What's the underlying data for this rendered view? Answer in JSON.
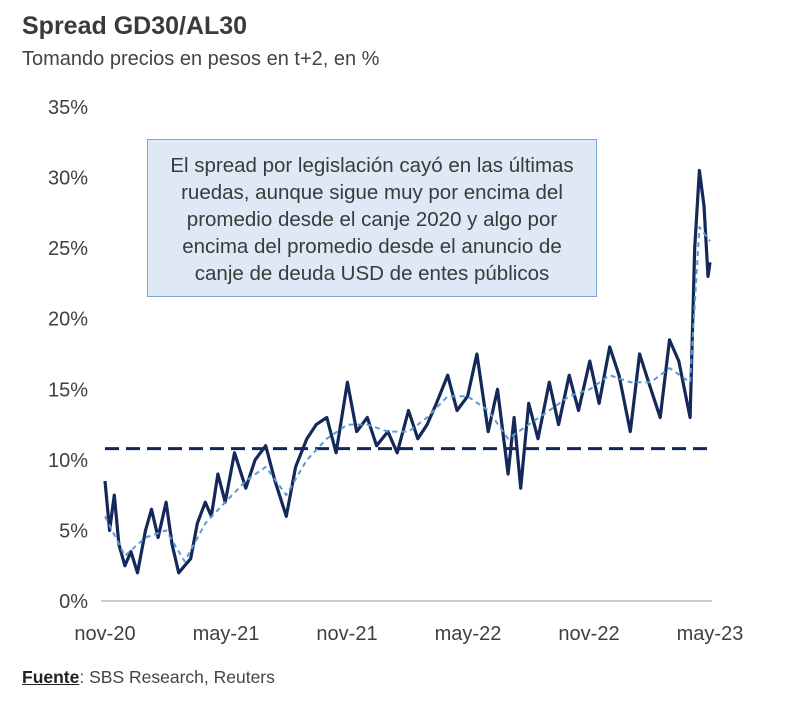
{
  "header": {
    "title": "Spread GD30/AL30",
    "subtitle": "Tomando precios en pesos en t+2, en %"
  },
  "annotation": "El spread por legislación cayó en las últimas ruedas, aunque sigue muy por encima del promedio desde el canje 2020 y algo por encima del promedio desde el anuncio de canje de deuda USD de entes públicos",
  "footer": {
    "source_label": "Fuente",
    "source_text": ": SBS Research, Reuters"
  },
  "colors": {
    "series_dark": "#14285a",
    "series_ma": "#5b9bd5",
    "reference_line": "#14285a",
    "annotation_bg": "#dfe9f5",
    "annotation_border": "#7fa7d4"
  },
  "chart_data": {
    "type": "line",
    "title": "Spread GD30/AL30",
    "subtitle": "Tomando precios en pesos en t+2, en %",
    "xlabel": "",
    "ylabel": "",
    "x_tick_labels": [
      "nov-20",
      "may-21",
      "nov-21",
      "may-22",
      "nov-22",
      "may-23"
    ],
    "y_tick_labels": [
      "0%",
      "5%",
      "10%",
      "15%",
      "20%",
      "25%",
      "30%",
      "35%"
    ],
    "ylim": [
      0,
      35
    ],
    "x_range": [
      "2020-11-01",
      "2023-05-01"
    ],
    "grid": false,
    "legend": "none",
    "reference_lines": [
      {
        "value": 10.8,
        "style": "dashed"
      }
    ],
    "series": [
      {
        "style": "solid",
        "x": [
          "2020-11-01",
          "2020-11-08",
          "2020-11-15",
          "2020-11-22",
          "2020-12-01",
          "2020-12-10",
          "2020-12-20",
          "2021-01-01",
          "2021-01-10",
          "2021-01-20",
          "2021-02-01",
          "2021-02-10",
          "2021-02-20",
          "2021-03-01",
          "2021-03-10",
          "2021-03-20",
          "2021-04-01",
          "2021-04-10",
          "2021-04-20",
          "2021-05-01",
          "2021-05-15",
          "2021-06-01",
          "2021-06-15",
          "2021-07-01",
          "2021-07-15",
          "2021-08-01",
          "2021-08-15",
          "2021-09-01",
          "2021-09-15",
          "2021-10-01",
          "2021-10-15",
          "2021-11-01",
          "2021-11-15",
          "2021-12-01",
          "2021-12-15",
          "2022-01-01",
          "2022-01-15",
          "2022-02-01",
          "2022-02-15",
          "2022-03-01",
          "2022-03-15",
          "2022-04-01",
          "2022-04-15",
          "2022-05-01",
          "2022-05-15",
          "2022-06-01",
          "2022-06-15",
          "2022-07-01",
          "2022-07-10",
          "2022-07-20",
          "2022-08-01",
          "2022-08-15",
          "2022-09-01",
          "2022-09-15",
          "2022-10-01",
          "2022-10-15",
          "2022-11-01",
          "2022-11-15",
          "2022-12-01",
          "2022-12-15",
          "2023-01-01",
          "2023-01-15",
          "2023-02-01",
          "2023-02-15",
          "2023-03-01",
          "2023-03-15",
          "2023-04-01",
          "2023-04-08",
          "2023-04-15",
          "2023-04-22",
          "2023-04-28",
          "2023-05-01"
        ],
        "values": [
          8.5,
          5.0,
          7.5,
          4.0,
          2.5,
          3.5,
          2.0,
          5.0,
          6.5,
          4.5,
          7.0,
          4.0,
          2.0,
          2.5,
          3.0,
          5.5,
          7.0,
          6.0,
          9.0,
          7.0,
          10.5,
          8.0,
          10.0,
          11.0,
          8.5,
          6.0,
          9.5,
          11.5,
          12.5,
          13.0,
          10.5,
          15.5,
          12.0,
          13.0,
          11.0,
          12.0,
          10.5,
          13.5,
          11.5,
          12.5,
          14.0,
          16.0,
          13.5,
          14.5,
          17.5,
          12.0,
          15.0,
          9.0,
          13.0,
          8.0,
          14.0,
          11.5,
          15.5,
          12.5,
          16.0,
          13.5,
          17.0,
          14.0,
          18.0,
          16.0,
          12.0,
          17.5,
          15.0,
          13.0,
          18.5,
          17.0,
          13.0,
          25.0,
          30.5,
          28.0,
          23.0,
          24.0
        ]
      },
      {
        "style": "dashed",
        "x": [
          "2020-11-01",
          "2020-12-01",
          "2021-01-01",
          "2021-02-01",
          "2021-03-01",
          "2021-04-01",
          "2021-05-01",
          "2021-06-01",
          "2021-07-01",
          "2021-08-01",
          "2021-09-01",
          "2021-10-01",
          "2021-11-01",
          "2021-12-01",
          "2022-01-01",
          "2022-02-01",
          "2022-03-01",
          "2022-04-01",
          "2022-05-01",
          "2022-06-01",
          "2022-07-01",
          "2022-08-01",
          "2022-09-01",
          "2022-10-01",
          "2022-11-01",
          "2022-12-01",
          "2023-01-01",
          "2023-02-01",
          "2023-03-01",
          "2023-04-01",
          "2023-04-15",
          "2023-05-01"
        ],
        "values": [
          6.0,
          3.2,
          4.5,
          5.0,
          2.8,
          5.5,
          7.0,
          8.5,
          9.5,
          7.5,
          10.0,
          11.5,
          12.5,
          12.5,
          12.0,
          12.0,
          13.0,
          14.5,
          14.5,
          13.5,
          11.5,
          12.5,
          13.5,
          14.5,
          15.0,
          16.0,
          15.5,
          15.5,
          16.5,
          15.5,
          26.5,
          25.5
        ]
      }
    ]
  }
}
